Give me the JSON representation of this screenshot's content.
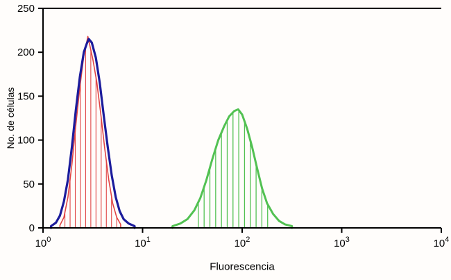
{
  "chart_data": {
    "type": "line",
    "subtype": "flow-cytometry-histogram",
    "title": "",
    "xlabel": "Fluorescencia",
    "ylabel": "No. de células",
    "x_scale": "log10",
    "xlim_log10": [
      0,
      4
    ],
    "ylim": [
      0,
      250
    ],
    "y_ticks": [
      0,
      50,
      100,
      150,
      200,
      250
    ],
    "x_tick_exponents": [
      0,
      1,
      2,
      3,
      4
    ],
    "grid": false,
    "legend": "none",
    "plot_border": [
      "top",
      "left",
      "bottom"
    ],
    "series": [
      {
        "name": "control-red",
        "color": "#e04545",
        "stroke_width": 1.6,
        "hatch": {
          "from": 0.22,
          "to": 0.74,
          "step": 0.052,
          "stroke_width": 1.1
        },
        "points_log10x_y": [
          [
            0.17,
            3
          ],
          [
            0.21,
            12
          ],
          [
            0.25,
            35
          ],
          [
            0.29,
            72
          ],
          [
            0.33,
            118
          ],
          [
            0.37,
            160
          ],
          [
            0.41,
            196
          ],
          [
            0.44,
            212
          ],
          [
            0.45,
            218
          ],
          [
            0.47,
            208
          ],
          [
            0.5,
            192
          ],
          [
            0.54,
            166
          ],
          [
            0.58,
            130
          ],
          [
            0.62,
            90
          ],
          [
            0.66,
            55
          ],
          [
            0.7,
            28
          ],
          [
            0.74,
            12
          ],
          [
            0.78,
            4
          ]
        ]
      },
      {
        "name": "sample-green",
        "color": "#52c152",
        "stroke_width": 3,
        "hatch": {
          "from": 1.56,
          "to": 2.26,
          "step": 0.058,
          "stroke_width": 1.3
        },
        "points_log10x_y": [
          [
            1.3,
            2
          ],
          [
            1.38,
            5
          ],
          [
            1.45,
            10
          ],
          [
            1.52,
            20
          ],
          [
            1.58,
            34
          ],
          [
            1.64,
            54
          ],
          [
            1.7,
            78
          ],
          [
            1.76,
            100
          ],
          [
            1.82,
            116
          ],
          [
            1.87,
            127
          ],
          [
            1.92,
            133
          ],
          [
            1.96,
            135
          ],
          [
            2.0,
            129
          ],
          [
            2.05,
            113
          ],
          [
            2.1,
            92
          ],
          [
            2.15,
            68
          ],
          [
            2.2,
            45
          ],
          [
            2.25,
            28
          ],
          [
            2.31,
            16
          ],
          [
            2.37,
            8
          ],
          [
            2.43,
            4
          ],
          [
            2.5,
            2
          ]
        ]
      },
      {
        "name": "control-blue",
        "color": "#1c1c9c",
        "stroke_width": 3.2,
        "hatch": null,
        "points_log10x_y": [
          [
            0.08,
            2
          ],
          [
            0.13,
            6
          ],
          [
            0.17,
            14
          ],
          [
            0.21,
            30
          ],
          [
            0.25,
            55
          ],
          [
            0.29,
            92
          ],
          [
            0.33,
            135
          ],
          [
            0.37,
            172
          ],
          [
            0.41,
            200
          ],
          [
            0.44,
            210
          ],
          [
            0.46,
            215
          ],
          [
            0.49,
            211
          ],
          [
            0.53,
            194
          ],
          [
            0.57,
            165
          ],
          [
            0.61,
            128
          ],
          [
            0.65,
            92
          ],
          [
            0.69,
            60
          ],
          [
            0.73,
            35
          ],
          [
            0.77,
            19
          ],
          [
            0.81,
            10
          ],
          [
            0.86,
            5
          ],
          [
            0.92,
            2
          ]
        ]
      }
    ]
  }
}
